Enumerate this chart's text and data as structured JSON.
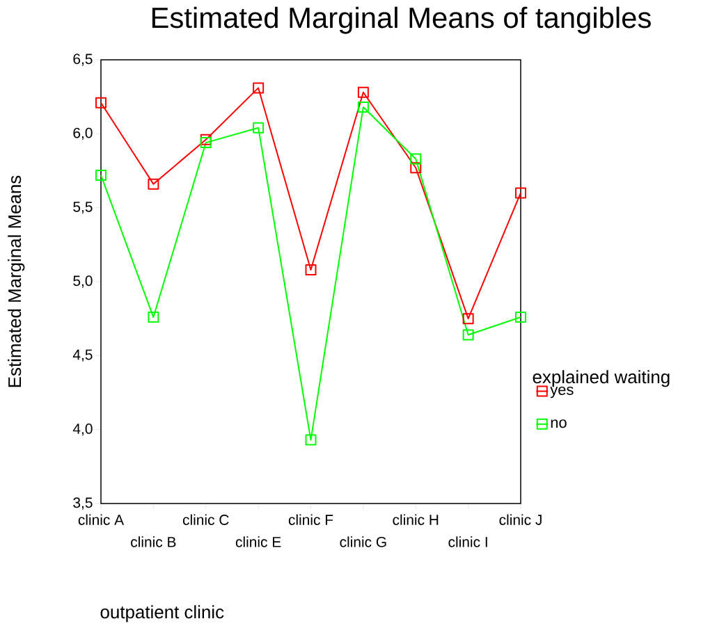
{
  "chart_data": {
    "type": "line",
    "title": "Estimated Marginal Means of tangibles",
    "xlabel": "outpatient clinic",
    "ylabel": "Estimated Marginal Means",
    "legend_title": "explained waiting",
    "categories": [
      "clinic A",
      "clinic B",
      "clinic C",
      "clinic E",
      "clinic F",
      "clinic G",
      "clinic H",
      "clinic I",
      "clinic J"
    ],
    "series": [
      {
        "name": "yes",
        "color": "#ff0000",
        "values": [
          6.21,
          5.66,
          5.96,
          6.31,
          5.08,
          6.28,
          5.77,
          4.75,
          5.6
        ]
      },
      {
        "name": "no",
        "color": "#00ff00",
        "values": [
          5.72,
          4.76,
          5.94,
          6.04,
          3.93,
          6.18,
          5.83,
          4.64,
          4.76
        ]
      }
    ],
    "ylim": [
      3.5,
      6.5
    ],
    "yticks": [
      {
        "value": 3.5,
        "label": "3,5"
      },
      {
        "value": 4.0,
        "label": "4,0"
      },
      {
        "value": 4.5,
        "label": "4,5"
      },
      {
        "value": 5.0,
        "label": "5,0"
      },
      {
        "value": 5.5,
        "label": "5,5"
      },
      {
        "value": 6.0,
        "label": "6,0"
      },
      {
        "value": 6.5,
        "label": "6,5"
      }
    ],
    "marker": "square",
    "legend": "right",
    "grid": false
  }
}
